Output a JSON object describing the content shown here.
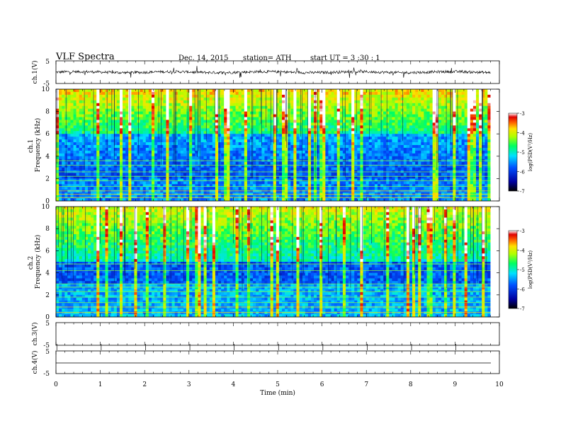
{
  "header": {
    "title": "VLF  Spectra",
    "date": "Dec. 14,  2015",
    "station": "station= ATH",
    "start_ut": "start  UT  =   3  :30 : 1"
  },
  "colors": {
    "spec_low": "#0000b0",
    "spec_mid": "#00e0ff",
    "spec_high": "#e00000"
  },
  "chart_data": [
    {
      "type": "line",
      "name": "ch1-waveform",
      "ylabel": "ch.1(V)",
      "ylim": [
        -5,
        5
      ],
      "yticks": [
        "5",
        "-5"
      ],
      "xlim": [
        0,
        10
      ],
      "description": "Noisy waveform near 0 V, amplitude roughly ±1 V with occasional spikes to ±3 V"
    },
    {
      "type": "heatmap",
      "name": "ch1-spectrogram",
      "ylabel": "ch.1\nFrequency (kHz)",
      "ylim": [
        0,
        10
      ],
      "yticks": [
        "0",
        "2",
        "4",
        "6",
        "8",
        "10"
      ],
      "xlim": [
        0,
        9.8
      ],
      "colorbar": {
        "label": "log(PSD(V²/Hz)",
        "range": [
          -7,
          -3
        ],
        "ticks": [
          "-3",
          "-4",
          "-5",
          "-6",
          "-7"
        ]
      }
    },
    {
      "type": "heatmap",
      "name": "ch2-spectrogram",
      "ylabel": "ch.2\nFrequency (kHz)",
      "ylim": [
        0,
        10
      ],
      "yticks": [
        "0",
        "2",
        "4",
        "6",
        "8",
        "10"
      ],
      "xlim": [
        0,
        9.8
      ],
      "colorbar": {
        "label": "log(PSD(V²/Hz)",
        "range": [
          -7,
          -3
        ],
        "ticks": [
          "-3",
          "-4",
          "-5",
          "-6",
          "-7"
        ]
      }
    },
    {
      "type": "line",
      "name": "ch3-waveform",
      "ylabel": "ch.3(V)",
      "ylim": [
        -5,
        5
      ],
      "yticks": [
        "5",
        "-5"
      ],
      "description": "Flat, with small minute markers"
    },
    {
      "type": "line",
      "name": "ch4-waveform",
      "ylabel": "ch.4(V)",
      "ylim": [
        -5,
        5
      ],
      "yticks": [
        "5",
        "-5"
      ],
      "description": "Flat line near -3 V"
    }
  ],
  "x_axis": {
    "label": "Time  (min)",
    "ticks": [
      "0",
      "1",
      "2",
      "3",
      "4",
      "5",
      "6",
      "7",
      "8",
      "9",
      "10"
    ],
    "range": [
      0,
      10
    ]
  }
}
